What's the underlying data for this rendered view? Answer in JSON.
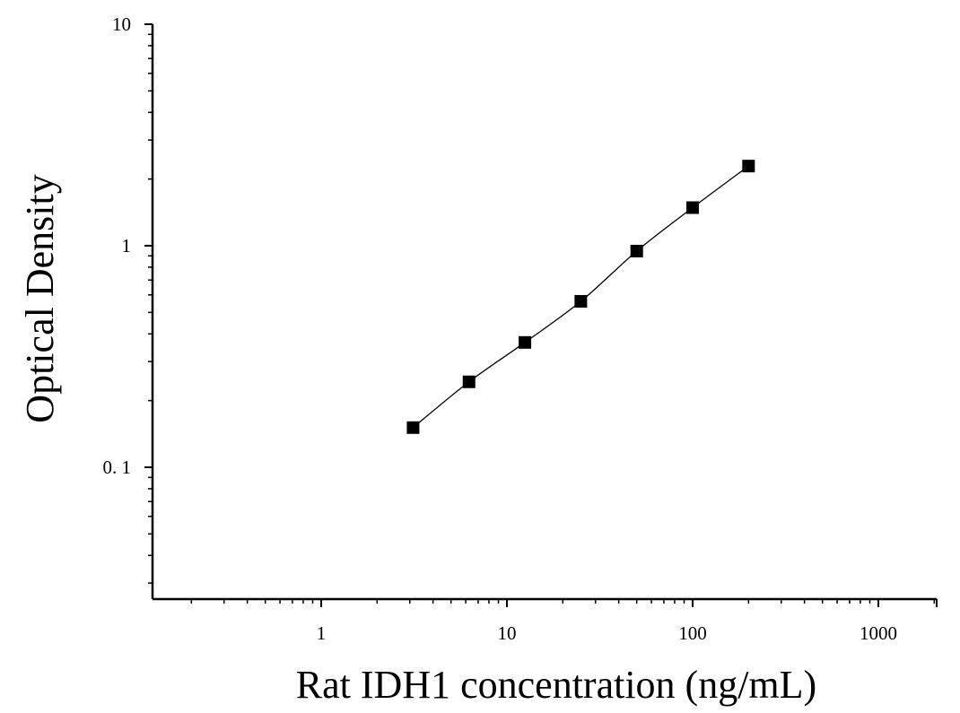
{
  "chart_data": {
    "type": "scatter",
    "title": "",
    "xlabel": "Rat IDH1 concentration (ng/mL)",
    "ylabel": "Optical Density",
    "x_scale": "log",
    "y_scale": "log",
    "xlim": [
      0.12,
      2000
    ],
    "ylim": [
      0.025,
      10
    ],
    "x_ticks": [
      {
        "value": 1,
        "label": "1"
      },
      {
        "value": 10,
        "label": "10"
      },
      {
        "value": 100,
        "label": "100"
      },
      {
        "value": 1000,
        "label": "1000"
      }
    ],
    "y_ticks": [
      {
        "value": 0.1,
        "label": "0. 1"
      },
      {
        "value": 1,
        "label": "1"
      },
      {
        "value": 10,
        "label": "10"
      }
    ],
    "grid": false,
    "legend": "none",
    "series": [
      {
        "x": [
          3.125,
          6.25,
          12.5,
          25,
          50,
          100,
          200
        ],
        "y": [
          0.151,
          0.243,
          0.366,
          0.561,
          0.946,
          1.486,
          2.289
        ],
        "marker": "square",
        "fit_line": true,
        "color": "#000000"
      }
    ]
  }
}
